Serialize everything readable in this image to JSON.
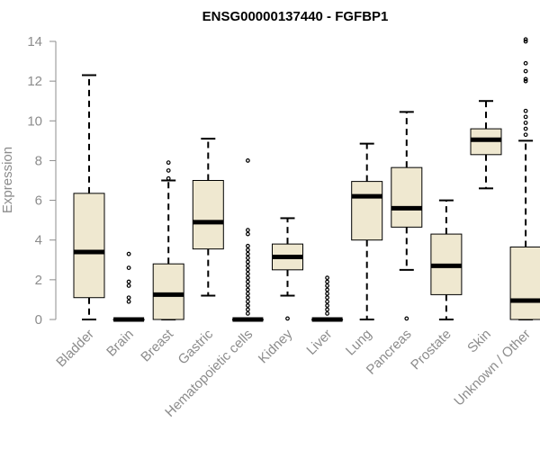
{
  "chart_data": {
    "type": "box",
    "title": "ENSG00000137440 - FGFBP1",
    "ylabel": "Expression",
    "ylim": [
      0,
      14
    ],
    "yticks": [
      0,
      2,
      4,
      6,
      8,
      10,
      12,
      14
    ],
    "box_fill": "#efe8d0",
    "categories": [
      "Bladder",
      "Brain",
      "Breast",
      "Gastric",
      "Hematopoietic cells",
      "Kidney",
      "Liver",
      "Lung",
      "Pancreas",
      "Prostate",
      "Skin",
      "Unknown / Other"
    ],
    "boxes": [
      {
        "name": "Bladder",
        "whisker_low": 0,
        "q1": 1.1,
        "median": 3.4,
        "q3": 6.35,
        "whisker_high": 12.3,
        "outliers": []
      },
      {
        "name": "Brain",
        "whisker_low": 0,
        "q1": 0,
        "median": 0,
        "q3": 0,
        "whisker_high": 0,
        "outliers": [
          0.9,
          1.1,
          1.7,
          1.9,
          2.6,
          3.3
        ]
      },
      {
        "name": "Breast",
        "whisker_low": 0,
        "q1": 0,
        "median": 1.25,
        "q3": 2.8,
        "whisker_high": 7.0,
        "outliers": [
          7.1,
          7.5,
          7.9
        ]
      },
      {
        "name": "Gastric",
        "whisker_low": 1.2,
        "q1": 3.55,
        "median": 4.9,
        "q3": 7.0,
        "whisker_high": 9.1,
        "outliers": []
      },
      {
        "name": "Hematopoietic cells",
        "whisker_low": 0,
        "q1": 0,
        "median": 0,
        "q3": 0,
        "whisker_high": 0,
        "outliers": [
          0.3,
          0.5,
          0.7,
          0.9,
          1.1,
          1.3,
          1.5,
          1.7,
          1.9,
          2.1,
          2.3,
          2.5,
          2.7,
          2.9,
          3.1,
          3.3,
          3.5,
          3.7,
          4.3,
          4.5,
          8.0
        ]
      },
      {
        "name": "Kidney",
        "whisker_low": 1.2,
        "q1": 2.5,
        "median": 3.15,
        "q3": 3.8,
        "whisker_high": 5.1,
        "outliers": [
          0.05
        ]
      },
      {
        "name": "Liver",
        "whisker_low": 0,
        "q1": 0,
        "median": 0,
        "q3": 0,
        "whisker_high": 0,
        "outliers": [
          0.3,
          0.5,
          0.7,
          0.9,
          1.1,
          1.3,
          1.5,
          1.7,
          1.9,
          2.1
        ]
      },
      {
        "name": "Lung",
        "whisker_low": 0,
        "q1": 4.0,
        "median": 6.2,
        "q3": 6.95,
        "whisker_high": 8.85,
        "outliers": []
      },
      {
        "name": "Pancreas",
        "whisker_low": 2.5,
        "q1": 4.65,
        "median": 5.6,
        "q3": 7.65,
        "whisker_high": 10.45,
        "outliers": [
          0.05
        ]
      },
      {
        "name": "Prostate",
        "whisker_low": 0,
        "q1": 1.25,
        "median": 2.7,
        "q3": 4.3,
        "whisker_high": 6.0,
        "outliers": []
      },
      {
        "name": "Skin",
        "whisker_low": 6.6,
        "q1": 8.3,
        "median": 9.05,
        "q3": 9.6,
        "whisker_high": 11.0,
        "outliers": []
      },
      {
        "name": "Unknown / Other",
        "whisker_low": 0,
        "q1": 0,
        "median": 0.95,
        "q3": 3.65,
        "whisker_high": 9.0,
        "outliers": [
          9.3,
          9.6,
          9.9,
          10.2,
          10.5,
          12.0,
          12.1,
          12.5,
          12.9,
          14.0,
          14.1
        ]
      }
    ]
  }
}
